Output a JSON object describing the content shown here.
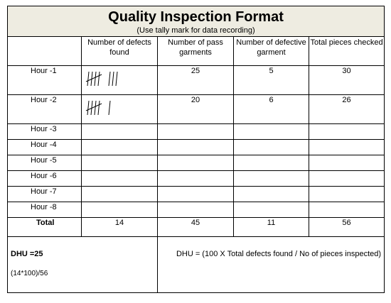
{
  "title": "Quality Inspection Format",
  "subtitle": "(Use tally mark for data recording)",
  "columns": [
    "",
    "Number of defects found",
    "Number of pass garments",
    "Number of defective garment",
    "Total pieces checked"
  ],
  "rows": [
    {
      "hour": "Hour -1",
      "defects_tally": 8,
      "pass": "25",
      "defective": "5",
      "total": "30"
    },
    {
      "hour": "Hour -2",
      "defects_tally": 6,
      "pass": "20",
      "defective": "6",
      "total": "26"
    },
    {
      "hour": "Hour -3",
      "pass": "",
      "defective": "",
      "total": ""
    },
    {
      "hour": "Hour -4",
      "pass": "",
      "defective": "",
      "total": ""
    },
    {
      "hour": "Hour -5",
      "pass": "",
      "defective": "",
      "total": ""
    },
    {
      "hour": "Hour -6",
      "pass": "",
      "defective": "",
      "total": ""
    },
    {
      "hour": "Hour -7",
      "pass": "",
      "defective": "",
      "total": ""
    },
    {
      "hour": "Hour -8",
      "pass": "",
      "defective": "",
      "total": ""
    }
  ],
  "total_row": {
    "label": "Total",
    "defects": "14",
    "pass": "45",
    "defective": "11",
    "total": "56"
  },
  "dhu": {
    "value": "DHU =25",
    "calculation": "(14*100)/56",
    "formula": "DHU = (100 X Total defects found / No of pieces inspected)"
  }
}
